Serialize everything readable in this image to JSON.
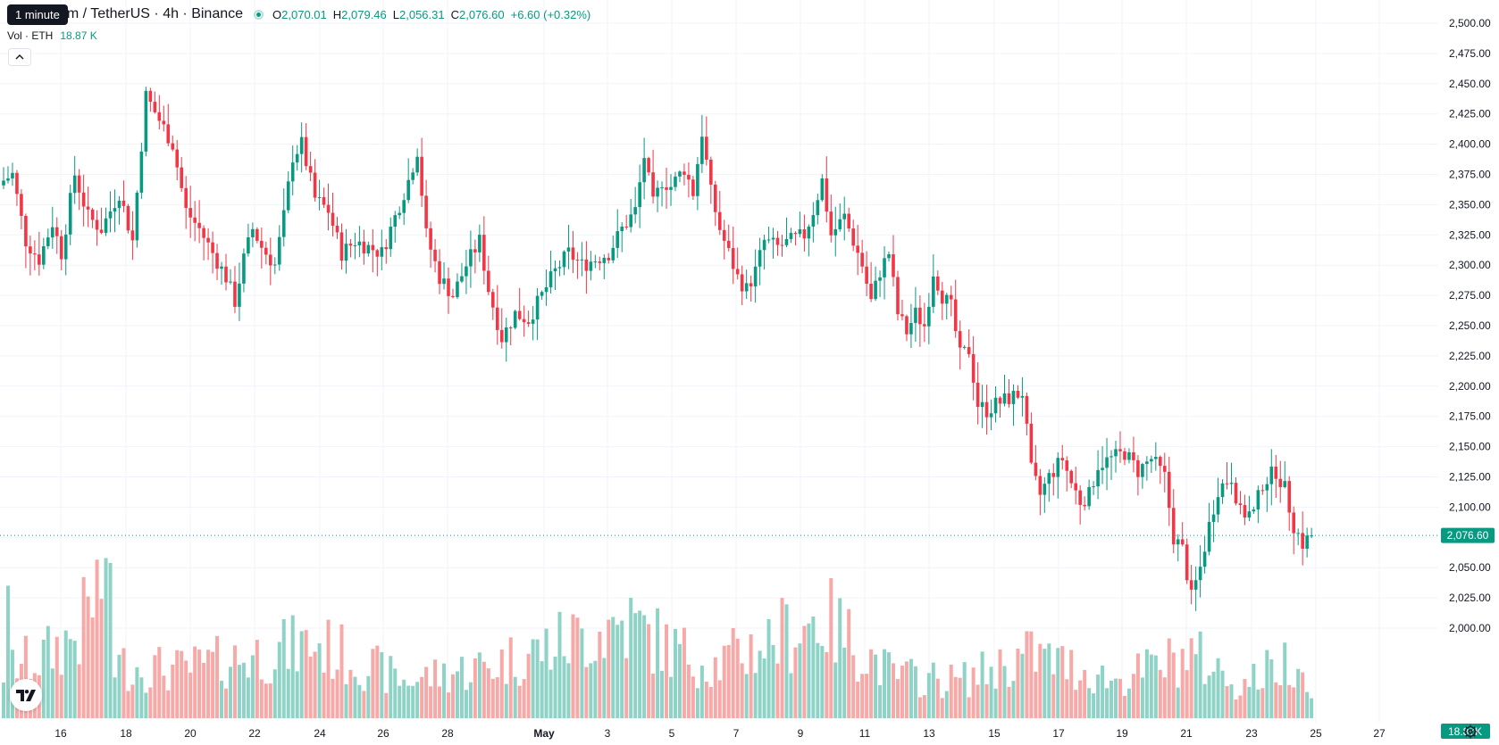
{
  "header": {
    "symbol": "um / TetherUS · 4h · Binance",
    "tooltip": "1 minute",
    "ohlc": {
      "o_label": "O",
      "o_value": "2,070.01",
      "h_label": "H",
      "h_value": "2,079.46",
      "l_label": "L",
      "l_value": "2,056.31",
      "c_label": "C",
      "c_value": "2,076.60",
      "change": "+6.60 (+0.32%)"
    }
  },
  "volume_legend": {
    "label": "Vol · ETH",
    "value": "18.87 K"
  },
  "colors": {
    "up": "#089981",
    "down": "#f23645",
    "up_vol": "#8fd3c7",
    "down_vol": "#f7a9a8",
    "grid": "#f0f3fa"
  },
  "icons": {
    "collapse": "chevron-up-icon",
    "logo": "tradingview-logo-icon",
    "settings": "gear-icon"
  },
  "chart_data": {
    "type": "candlestick",
    "timeframe": "4h",
    "x_ticks": [
      "16",
      "18",
      "20",
      "22",
      "24",
      "26",
      "28",
      "May",
      "3",
      "5",
      "7",
      "9",
      "11",
      "13",
      "15",
      "17",
      "19",
      "21",
      "23",
      "25",
      "27"
    ],
    "y_ticks": [
      "2,000.00",
      "2,025.00",
      "2,050.00",
      "2,075.00",
      "2,100.00",
      "2,125.00",
      "2,150.00",
      "2,175.00",
      "2,200.00",
      "2,225.00",
      "2,250.00",
      "2,275.00",
      "2,300.00",
      "2,325.00",
      "2,350.00",
      "2,375.00",
      "2,400.00",
      "2,425.00",
      "2,450.00",
      "2,475.00",
      "2,500.00"
    ],
    "ylim": [
      1990,
      2502
    ],
    "last_price": 2076.6,
    "last_price_label": "2,076.60",
    "volume_last_label": "18.87K",
    "close_path": [
      [
        0,
        2370
      ],
      [
        2,
        2375
      ],
      [
        5,
        2320
      ],
      [
        8,
        2305
      ],
      [
        11,
        2335
      ],
      [
        13,
        2310
      ],
      [
        16,
        2375
      ],
      [
        19,
        2340
      ],
      [
        22,
        2330
      ],
      [
        26,
        2360
      ],
      [
        29,
        2320
      ],
      [
        32,
        2440
      ],
      [
        35,
        2420
      ],
      [
        38,
        2400
      ],
      [
        41,
        2345
      ],
      [
        44,
        2330
      ],
      [
        47,
        2310
      ],
      [
        50,
        2290
      ],
      [
        52,
        2270
      ],
      [
        54,
        2305
      ],
      [
        56,
        2330
      ],
      [
        58,
        2315
      ],
      [
        61,
        2300
      ],
      [
        63,
        2340
      ],
      [
        65,
        2390
      ],
      [
        67,
        2400
      ],
      [
        70,
        2355
      ],
      [
        73,
        2345
      ],
      [
        76,
        2310
      ],
      [
        79,
        2320
      ],
      [
        82,
        2315
      ],
      [
        85,
        2310
      ],
      [
        88,
        2340
      ],
      [
        91,
        2370
      ],
      [
        93,
        2395
      ],
      [
        95,
        2325
      ],
      [
        98,
        2290
      ],
      [
        101,
        2275
      ],
      [
        104,
        2300
      ],
      [
        107,
        2320
      ],
      [
        109,
        2280
      ],
      [
        112,
        2240
      ],
      [
        115,
        2260
      ],
      [
        118,
        2255
      ],
      [
        121,
        2275
      ],
      [
        124,
        2295
      ],
      [
        127,
        2310
      ],
      [
        130,
        2300
      ],
      [
        133,
        2305
      ],
      [
        136,
        2310
      ],
      [
        139,
        2330
      ],
      [
        142,
        2345
      ],
      [
        144,
        2390
      ],
      [
        146,
        2350
      ],
      [
        148,
        2370
      ],
      [
        150,
        2365
      ],
      [
        153,
        2380
      ],
      [
        155,
        2360
      ],
      [
        157,
        2410
      ],
      [
        159,
        2360
      ],
      [
        161,
        2330
      ],
      [
        163,
        2310
      ],
      [
        165,
        2290
      ],
      [
        167,
        2280
      ],
      [
        169,
        2295
      ],
      [
        171,
        2320
      ],
      [
        174,
        2315
      ],
      [
        177,
        2320
      ],
      [
        180,
        2325
      ],
      [
        182,
        2345
      ],
      [
        184,
        2370
      ],
      [
        186,
        2325
      ],
      [
        189,
        2340
      ],
      [
        191,
        2320
      ],
      [
        193,
        2300
      ],
      [
        195,
        2270
      ],
      [
        197,
        2295
      ],
      [
        199,
        2310
      ],
      [
        201,
        2260
      ],
      [
        203,
        2245
      ],
      [
        205,
        2260
      ],
      [
        207,
        2250
      ],
      [
        209,
        2295
      ],
      [
        211,
        2275
      ],
      [
        213,
        2265
      ],
      [
        215,
        2225
      ],
      [
        217,
        2230
      ],
      [
        219,
        2185
      ],
      [
        221,
        2180
      ],
      [
        223,
        2185
      ],
      [
        226,
        2190
      ],
      [
        229,
        2195
      ],
      [
        231,
        2130
      ],
      [
        233,
        2110
      ],
      [
        235,
        2125
      ],
      [
        238,
        2140
      ],
      [
        240,
        2120
      ],
      [
        242,
        2105
      ],
      [
        244,
        2110
      ],
      [
        246,
        2135
      ],
      [
        249,
        2140
      ],
      [
        252,
        2145
      ],
      [
        255,
        2130
      ],
      [
        258,
        2140
      ],
      [
        261,
        2125
      ],
      [
        263,
        2075
      ],
      [
        265,
        2065
      ],
      [
        267,
        2025
      ],
      [
        269,
        2050
      ],
      [
        271,
        2085
      ],
      [
        273,
        2115
      ],
      [
        276,
        2125
      ],
      [
        278,
        2095
      ],
      [
        281,
        2095
      ],
      [
        283,
        2120
      ],
      [
        286,
        2130
      ],
      [
        288,
        2115
      ],
      [
        290,
        2085
      ],
      [
        292,
        2070
      ],
      [
        294,
        2076.6
      ]
    ],
    "volume_path": [
      [
        0,
        0.45
      ],
      [
        1,
        0.9
      ],
      [
        2,
        0.5
      ],
      [
        8,
        0.55
      ],
      [
        17,
        0.8
      ],
      [
        24,
        1.5
      ],
      [
        25,
        0.5
      ],
      [
        40,
        0.45
      ],
      [
        70,
        0.7
      ],
      [
        90,
        0.35
      ],
      [
        110,
        0.5
      ],
      [
        140,
        0.9
      ],
      [
        150,
        0.65
      ],
      [
        160,
        0.5
      ],
      [
        184,
        0.95
      ],
      [
        200,
        0.4
      ],
      [
        215,
        0.35
      ],
      [
        231,
        0.6
      ],
      [
        250,
        0.35
      ],
      [
        267,
        0.6
      ],
      [
        271,
        0.5
      ],
      [
        278,
        0.3
      ],
      [
        291,
        0.6
      ],
      [
        294,
        0.16
      ]
    ]
  }
}
